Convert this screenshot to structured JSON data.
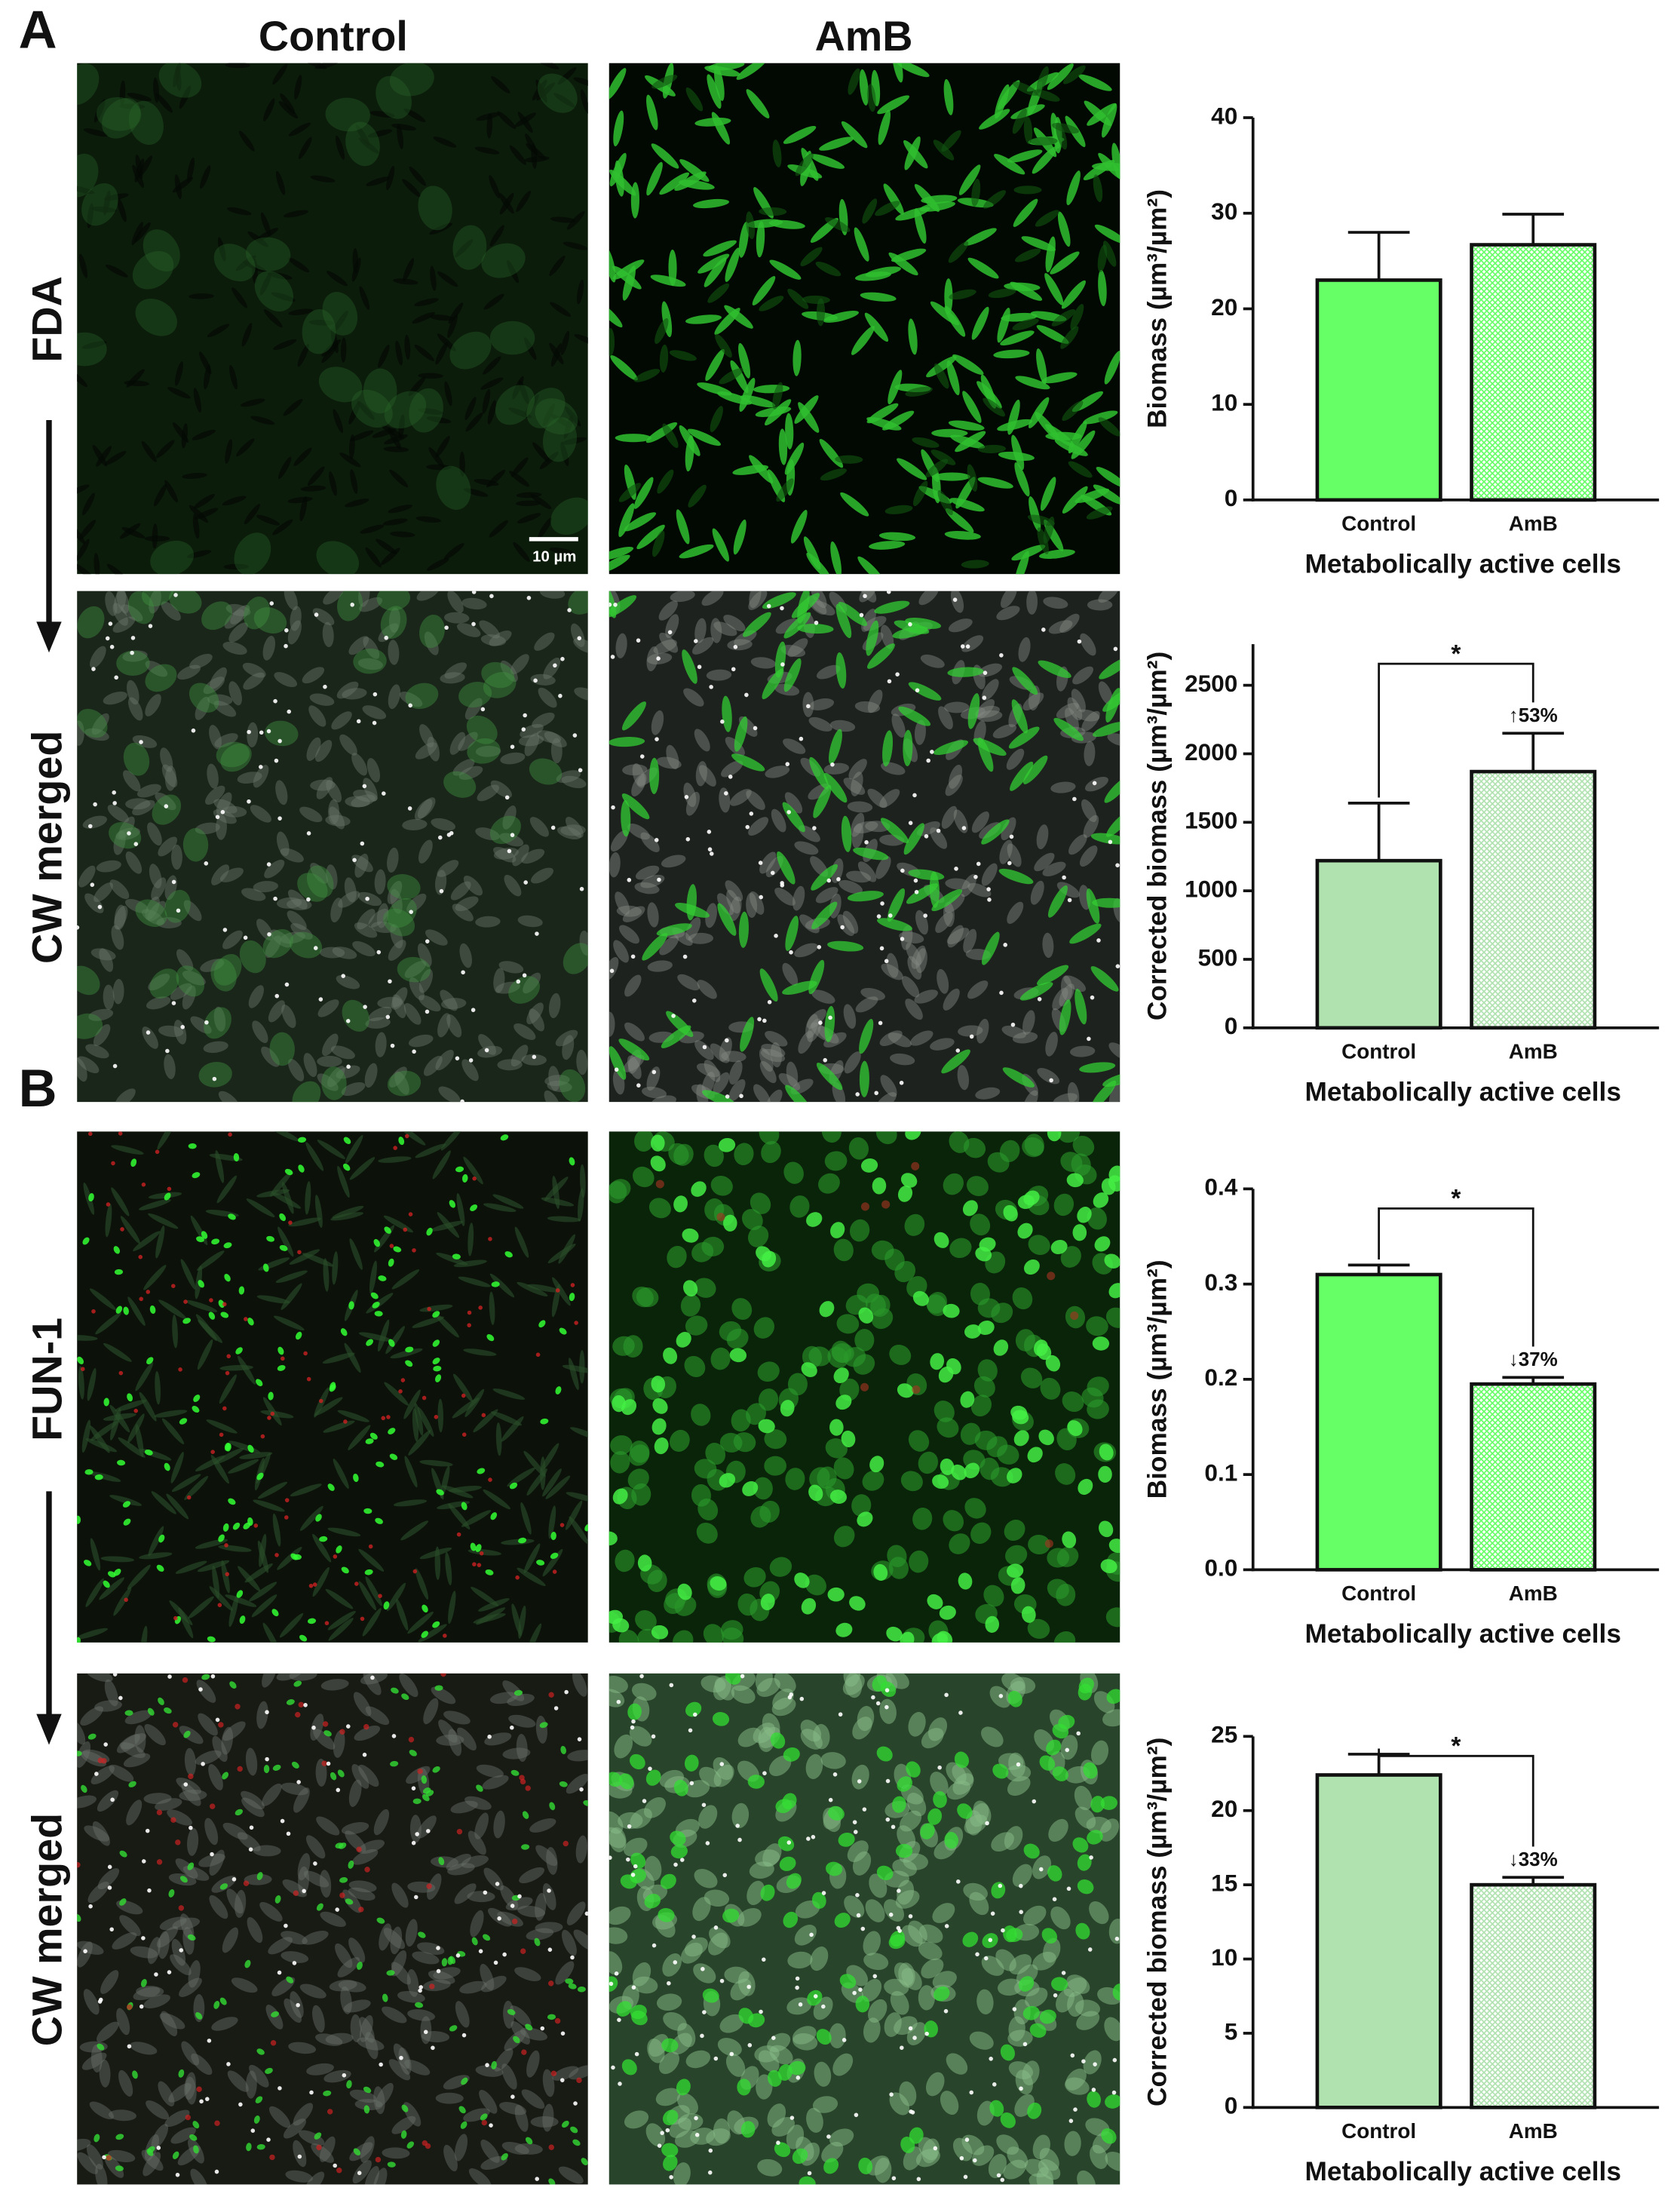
{
  "figure": {
    "panel_labels": [
      "A",
      "B"
    ],
    "column_titles": [
      "Control",
      "AmB"
    ],
    "row_labels": [
      "FDA",
      "CW merged",
      "FUN-1",
      "CW merged"
    ],
    "scale_bar": "10 µm"
  },
  "chart_data": [
    {
      "type": "bar",
      "categories": [
        "Control",
        "AmB"
      ],
      "values": [
        23,
        26.7
      ],
      "errors": [
        5,
        3.2
      ],
      "colors": [
        "#66ff66",
        "#66ff66"
      ],
      "hatched": [
        false,
        true
      ],
      "ylabel": "Biomass (µm³/µm²)",
      "xlabel": "Metabolically active cells",
      "ylim": [
        0,
        40
      ],
      "yticks": [
        0,
        10,
        20,
        30,
        40
      ]
    },
    {
      "type": "bar",
      "categories": [
        "Control",
        "AmB"
      ],
      "values": [
        1220,
        1870
      ],
      "errors": [
        420,
        280
      ],
      "colors": [
        "#b0e2b0",
        "#b0e2b0"
      ],
      "hatched": [
        false,
        true
      ],
      "ylabel": "Corrected biomass (µm³/µm²)",
      "xlabel": "Metabolically active cells",
      "ylim": [
        0,
        2800
      ],
      "yticks": [
        0,
        500,
        1000,
        1500,
        2000,
        2500
      ],
      "significance": "*",
      "change_label": "↑53%"
    },
    {
      "type": "bar",
      "categories": [
        "Control",
        "AmB"
      ],
      "values": [
        0.31,
        0.195
      ],
      "errors": [
        0.01,
        0.007
      ],
      "colors": [
        "#66ff66",
        "#66ff66"
      ],
      "hatched": [
        false,
        true
      ],
      "ylabel": "Biomass (µm³/µm²)",
      "xlabel": "Metabolically active cells",
      "ylim": [
        0,
        0.4
      ],
      "yticks": [
        {
          "value": 0,
          "label": "0.0"
        },
        0.1,
        0.2,
        0.3,
        0.4
      ],
      "significance": "*",
      "change_label": "↓37%"
    },
    {
      "type": "bar",
      "categories": [
        "Control",
        "AmB"
      ],
      "values": [
        22.4,
        15.0
      ],
      "errors": [
        1.4,
        0.5
      ],
      "colors": [
        "#b0e2b0",
        "#b0e2b0"
      ],
      "hatched": [
        false,
        true
      ],
      "ylabel": "Corrected biomass (µm³/µm²)",
      "xlabel": "Metabolically active cells",
      "ylim": [
        0,
        25
      ],
      "yticks": [
        0,
        5,
        10,
        15,
        20,
        25
      ],
      "significance": "*",
      "change_label": "↓33%"
    }
  ]
}
